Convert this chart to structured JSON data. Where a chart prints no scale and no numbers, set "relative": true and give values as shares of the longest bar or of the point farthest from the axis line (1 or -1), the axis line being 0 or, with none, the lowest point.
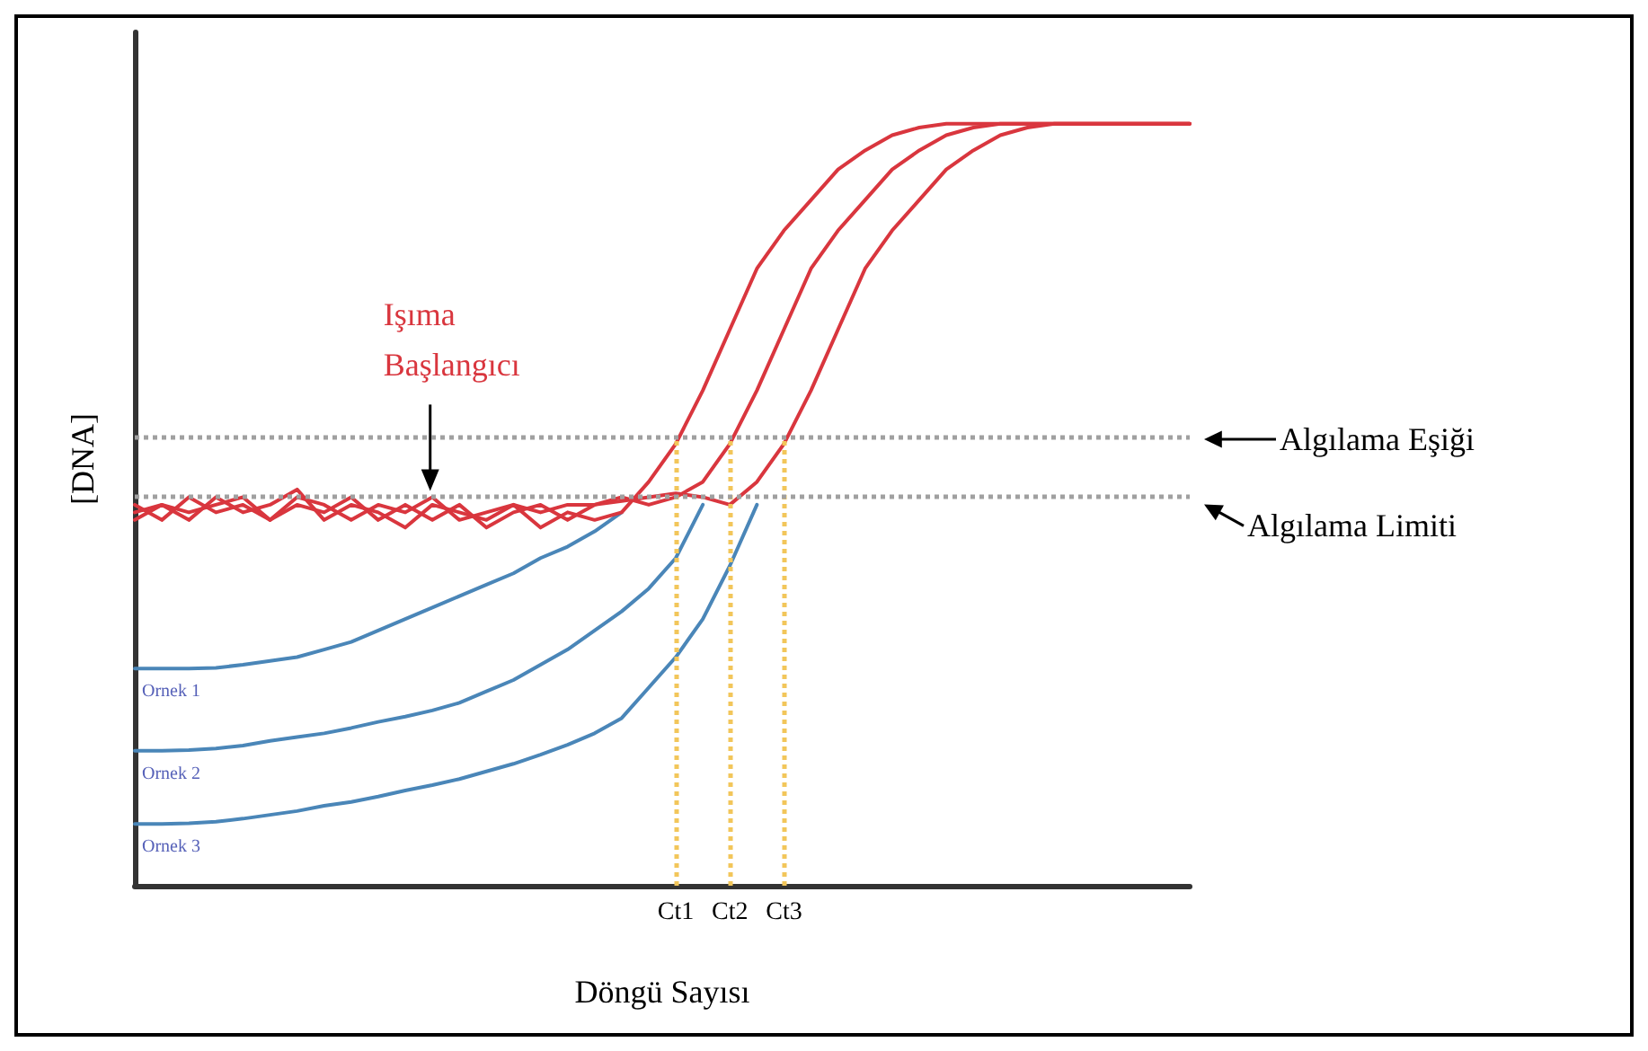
{
  "chart_data": {
    "type": "line",
    "relative": true,
    "xlabel": "Döngü Sayısı",
    "ylabel": "[DNA]",
    "categories": [
      null,
      null,
      null,
      null,
      null,
      null,
      null,
      null,
      null,
      null,
      null,
      null,
      null,
      null,
      null,
      null,
      null,
      null,
      null,
      null,
      "Ct1",
      null,
      "Ct2",
      null,
      "Ct3",
      null,
      null,
      null,
      null,
      null,
      null,
      null,
      null,
      null,
      null,
      null,
      null,
      null,
      null,
      null
    ],
    "series": [
      {
        "color": "#d9363e",
        "values": [
          0.49,
          0.5,
          0.48,
          0.51,
          0.49,
          0.5,
          0.52,
          0.48,
          0.5,
          0.49,
          0.47,
          0.5,
          0.49,
          0.48,
          0.5,
          0.47,
          0.49,
          0.48,
          0.49,
          0.53,
          0.58,
          0.65,
          0.73,
          0.81,
          0.86,
          0.9,
          0.94,
          0.965,
          0.985,
          0.995,
          1,
          1,
          1,
          1,
          1,
          1,
          1,
          1,
          1,
          1
        ]
      },
      {
        "color": "#d9363e",
        "values": [
          0.5,
          0.48,
          0.51,
          0.49,
          0.5,
          0.48,
          0.51,
          0.5,
          0.48,
          0.5,
          0.49,
          0.51,
          0.48,
          0.49,
          0.5,
          0.49,
          0.5,
          0.5,
          0.51,
          0.5,
          0.51,
          0.53,
          0.58,
          0.65,
          0.73,
          0.81,
          0.86,
          0.9,
          0.94,
          0.965,
          0.985,
          0.995,
          1,
          1,
          1,
          1,
          1,
          1,
          1,
          1
        ]
      },
      {
        "color": "#d9363e",
        "values": [
          0.48,
          0.5,
          0.49,
          0.5,
          0.51,
          0.48,
          0.5,
          0.49,
          0.51,
          0.48,
          0.5,
          0.48,
          0.5,
          0.47,
          0.49,
          0.5,
          0.48,
          0.5,
          0.505,
          0.51,
          0.515,
          0.51,
          0.5,
          0.53,
          0.58,
          0.65,
          0.73,
          0.81,
          0.86,
          0.9,
          0.94,
          0.965,
          0.985,
          0.995,
          1,
          1,
          1,
          1,
          1,
          1
        ]
      },
      {
        "name": "Ornek 1",
        "color": "#4a86b8",
        "values": [
          0.285,
          0.285,
          0.285,
          0.286,
          0.29,
          0.295,
          0.3,
          0.31,
          0.32,
          0.335,
          0.35,
          0.365,
          0.38,
          0.395,
          0.41,
          0.43,
          0.445,
          0.465,
          0.49,
          null,
          null,
          null,
          null,
          null,
          null,
          null,
          null,
          null,
          null,
          null,
          null,
          null,
          null,
          null,
          null,
          null,
          null,
          null,
          null,
          null
        ]
      },
      {
        "name": "Ornek 2",
        "color": "#4a86b8",
        "values": [
          0.177,
          0.177,
          0.178,
          0.18,
          0.184,
          0.19,
          0.195,
          0.2,
          0.207,
          0.215,
          0.222,
          0.23,
          0.24,
          0.255,
          0.27,
          0.29,
          0.31,
          0.335,
          0.36,
          0.39,
          0.43,
          0.5,
          null,
          null,
          null,
          null,
          null,
          null,
          null,
          null,
          null,
          null,
          null,
          null,
          null,
          null,
          null,
          null,
          null,
          null
        ]
      },
      {
        "name": "Ornek 3",
        "color": "#4a86b8",
        "values": [
          0.081,
          0.081,
          0.082,
          0.084,
          0.088,
          0.093,
          0.098,
          0.105,
          0.11,
          0.117,
          0.125,
          0.132,
          0.14,
          0.15,
          0.16,
          0.172,
          0.185,
          0.2,
          0.22,
          0.26,
          0.3,
          0.35,
          0.42,
          0.5,
          null,
          null,
          null,
          null,
          null,
          null,
          null,
          null,
          null,
          null,
          null,
          null,
          null,
          null,
          null,
          null
        ]
      }
    ],
    "ref_lines": [
      {
        "axis": "y",
        "value": 0.586,
        "label": "Algılama Eşiği",
        "color": "#a0a0a0",
        "line_style": "dotted"
      },
      {
        "axis": "y",
        "value": 0.51,
        "label": "Algılama Limiti",
        "color": "#a0a0a0",
        "line_style": "dotted"
      },
      {
        "axis": "x",
        "value": "Ct1",
        "color": "#f2c65a",
        "line_style": "dotted"
      },
      {
        "axis": "x",
        "value": "Ct2",
        "color": "#f2c65a",
        "line_style": "dotted"
      },
      {
        "axis": "x",
        "value": "Ct3",
        "color": "#f2c65a",
        "line_style": "dotted"
      }
    ],
    "annotations": [
      "Işıma Başlangıcı"
    ]
  }
}
